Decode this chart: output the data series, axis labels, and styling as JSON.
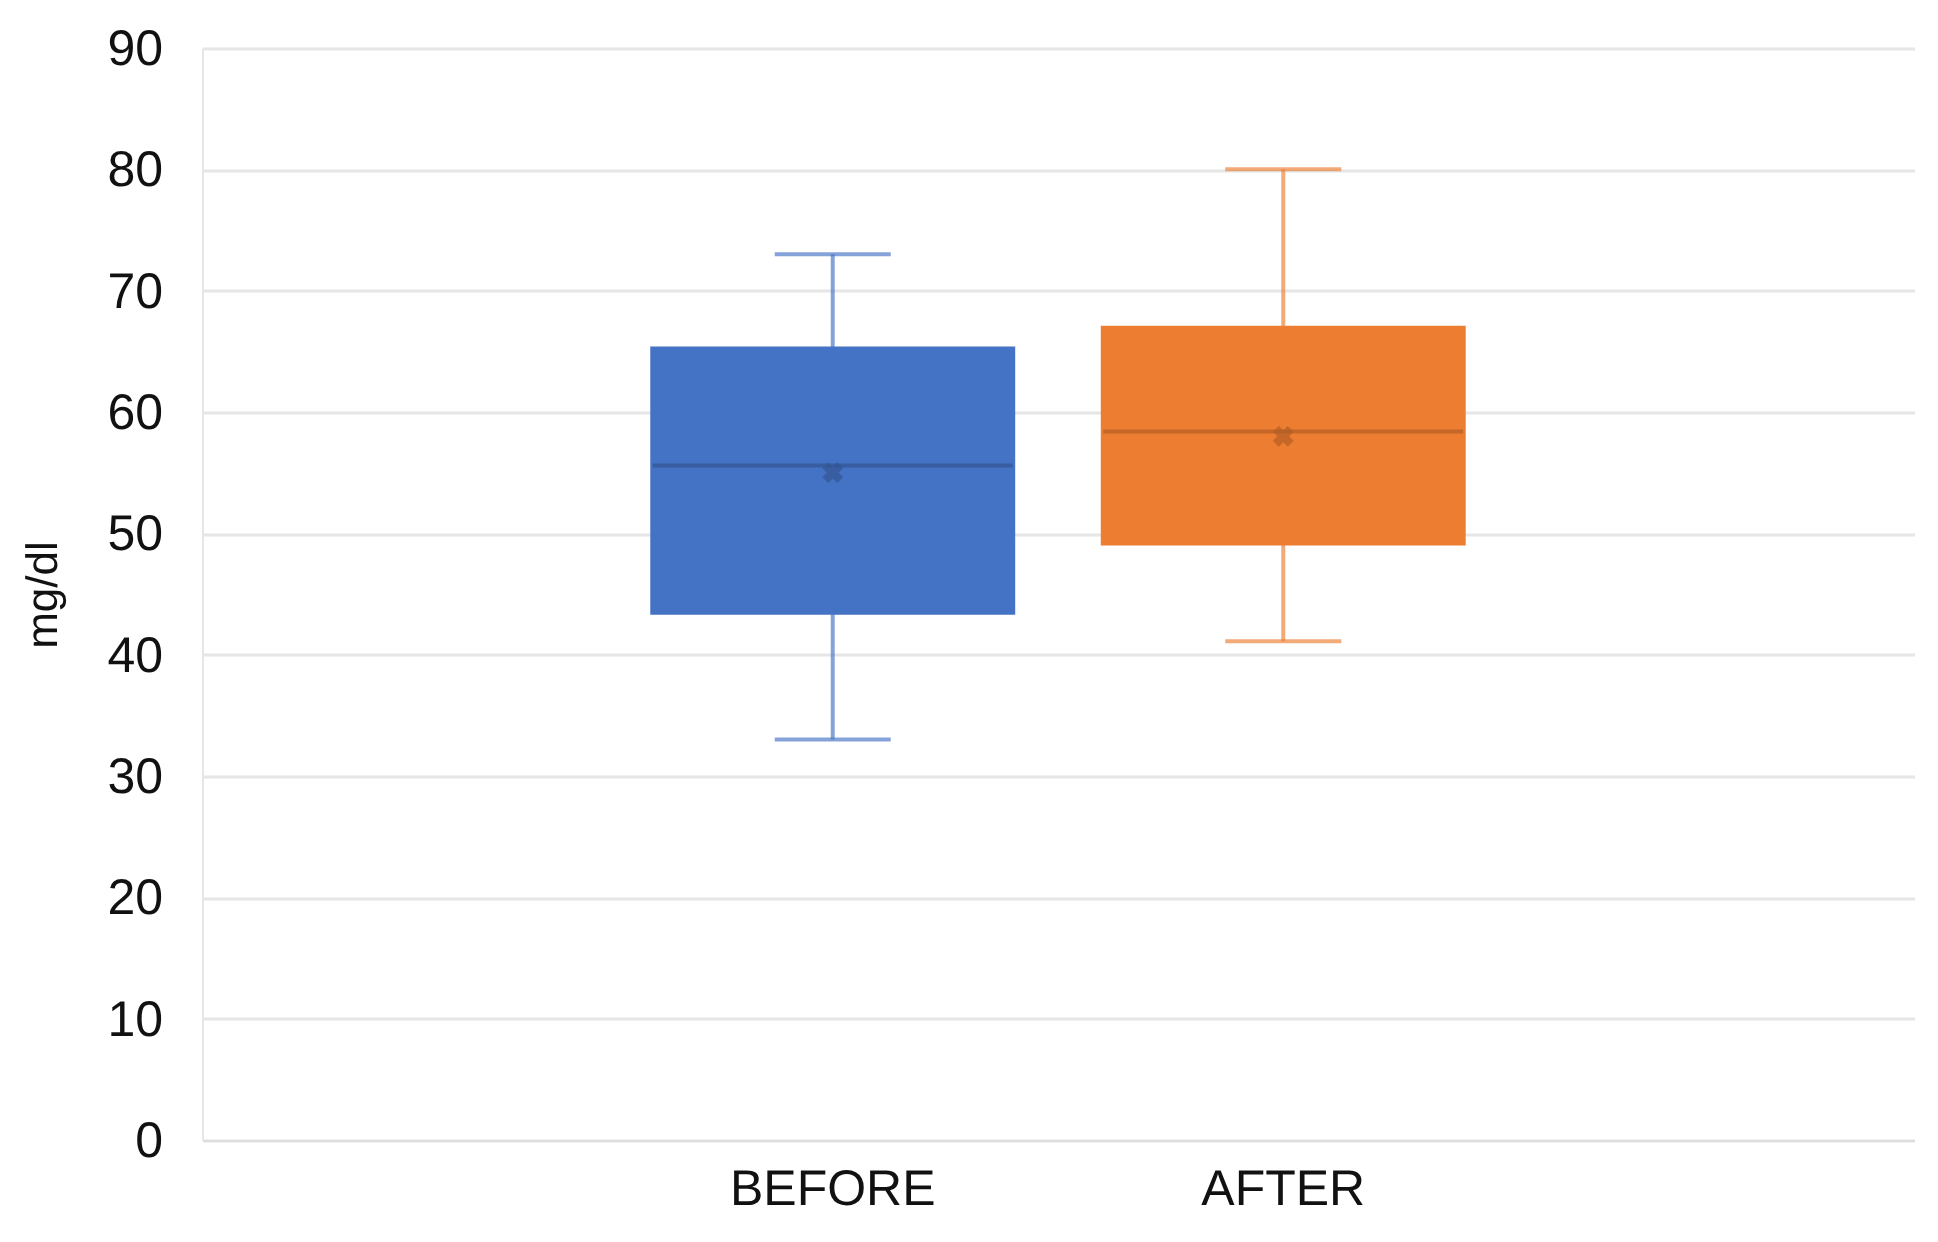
{
  "chart_data": {
    "type": "box",
    "ylabel": "mg/dl",
    "categories": [
      "BEFORE",
      "AFTER"
    ],
    "boxes": [
      {
        "low": 33,
        "q1": 43.3,
        "median": 55.6,
        "q3": 65.4,
        "high": 73,
        "mean": 55
      },
      {
        "low": 41.1,
        "q1": 49,
        "median": 58.4,
        "q3": 67.1,
        "high": 80,
        "mean": 58
      }
    ],
    "colors": [
      "#4472c4",
      "#ed7d31"
    ],
    "ylim": [
      0,
      90
    ],
    "yticks": [
      0,
      10,
      20,
      30,
      40,
      50,
      60,
      70,
      80,
      90
    ],
    "grid": "y"
  }
}
